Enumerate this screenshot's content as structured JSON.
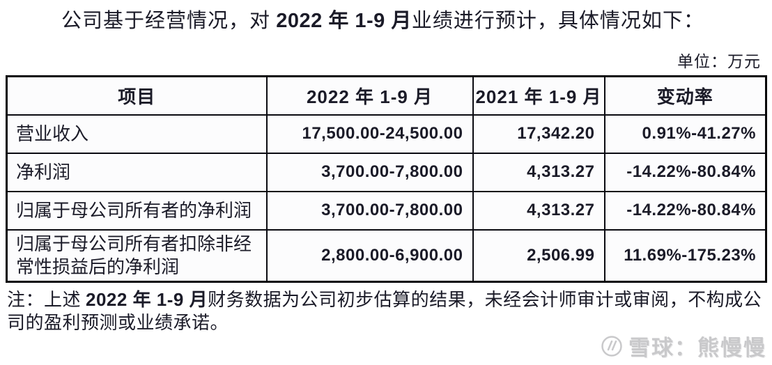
{
  "page": {
    "title_segments": [
      {
        "text": "公司基于经营情况，对 ",
        "bold": false
      },
      {
        "text": "2022 年 1-9 月",
        "bold": true
      },
      {
        "text": "业绩进行预计，具体情况如下：",
        "bold": false
      }
    ],
    "unit_label": "单位：万元"
  },
  "table": {
    "headers": [
      "项目",
      "2022 年 1-9 月",
      "2021 年 1-9 月",
      "变动率"
    ],
    "rows": [
      {
        "item": "营业收入",
        "forecast_2022": "17,500.00-24,500.00",
        "actual_2021": "17,342.20",
        "change_rate": "0.91%-41.27%"
      },
      {
        "item": "净利润",
        "forecast_2022": "3,700.00-7,800.00",
        "actual_2021": "4,313.27",
        "change_rate": "-14.22%-80.84%"
      },
      {
        "item": "归属于母公司所有者的净利润",
        "forecast_2022": "3,700.00-7,800.00",
        "actual_2021": "4,313.27",
        "change_rate": "-14.22%-80.84%"
      },
      {
        "item": "归属于母公司所有者扣除非经常性损益后的净利润",
        "forecast_2022": "2,800.00-6,900.00",
        "actual_2021": "2,506.99",
        "change_rate": "11.69%-175.23%"
      }
    ]
  },
  "note": {
    "segments": [
      {
        "text": "注：上述 ",
        "bold": false
      },
      {
        "text": "2022 年 1-9 月",
        "bold": true
      },
      {
        "text": "财务数据为公司初步估算的结果，未经会计师审计或审阅，不构成公司的盈利预测或业绩承诺。",
        "bold": false
      }
    ]
  },
  "watermark": {
    "icon": "xueqiu-logo",
    "text": "雪球：熊慢慢",
    "color": "#c9c9cb"
  }
}
